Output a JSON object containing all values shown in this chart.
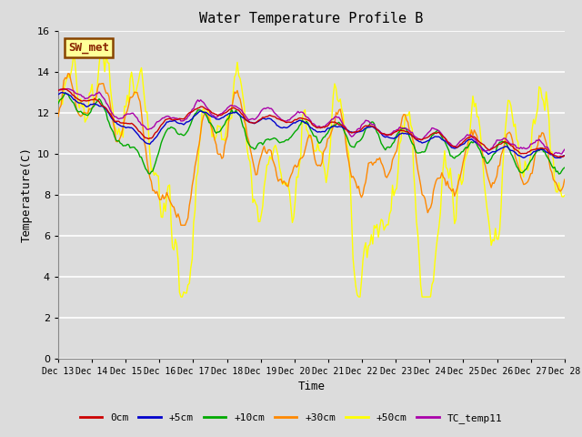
{
  "title": "Water Temperature Profile B",
  "xlabel": "Time",
  "ylabel": "Temperature(C)",
  "ylim": [
    0,
    16
  ],
  "yticks": [
    0,
    2,
    4,
    6,
    8,
    10,
    12,
    14,
    16
  ],
  "background_color": "#dcdcdc",
  "plot_bg_color": "#dcdcdc",
  "grid_color": "#ffffff",
  "series": {
    "0cm": {
      "color": "#cc0000",
      "lw": 1.0
    },
    "+5cm": {
      "color": "#0000cc",
      "lw": 1.0
    },
    "+10cm": {
      "color": "#00aa00",
      "lw": 1.0
    },
    "+30cm": {
      "color": "#ff8800",
      "lw": 1.0
    },
    "+50cm": {
      "color": "#ffff00",
      "lw": 1.0
    },
    "TC_temp11": {
      "color": "#aa00aa",
      "lw": 1.0
    }
  },
  "legend_box": {
    "text": "SW_met",
    "bg": "#ffff99",
    "edge": "#884400",
    "text_color": "#882200"
  },
  "n_points": 360,
  "font": "monospace"
}
